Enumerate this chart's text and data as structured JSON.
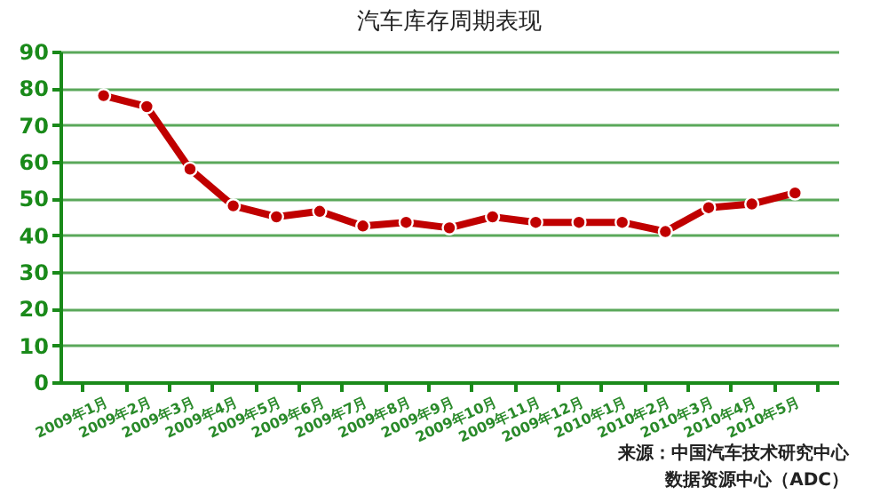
{
  "chart_data": {
    "type": "line",
    "title": "汽车库存周期表现",
    "categories": [
      "2009年1月",
      "2009年2月",
      "2009年3月",
      "2009年4月",
      "2009年5月",
      "2009年6月",
      "2009年7月",
      "2009年8月",
      "2009年9月",
      "2009年10月",
      "2009年11月",
      "2009年12月",
      "2010年1月",
      "2010年2月",
      "2010年3月",
      "2010年4月",
      "2010年5月"
    ],
    "series": [
      {
        "color": "#c00000",
        "values": [
          78,
          75,
          58,
          48,
          45,
          46.5,
          42.5,
          43.5,
          42,
          45,
          43.5,
          43.5,
          43.5,
          41,
          47.5,
          48.5,
          51.5
        ]
      }
    ],
    "ylim": [
      0,
      90
    ],
    "yticks": [
      0,
      10,
      20,
      30,
      40,
      50,
      60,
      70,
      80,
      90
    ],
    "grid": "y",
    "marker": "circle",
    "annotations": [
      "来源：中国汽车技术研究中心",
      "数据资源中心（ADC）"
    ]
  }
}
